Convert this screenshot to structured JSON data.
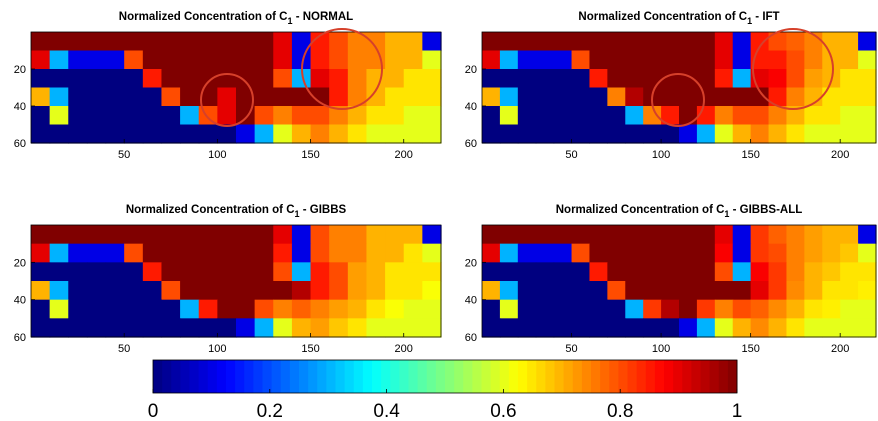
{
  "chart_data": [
    {
      "type": "heatmap",
      "title": {
        "text": "Normalized Concentration of C",
        "sub": "1",
        "suffix": " - NORMAL"
      },
      "xlim": [
        0,
        220
      ],
      "ylim": [
        0,
        60
      ],
      "y_reversed": true,
      "xticks": [
        50,
        100,
        150,
        200
      ],
      "yticks": [
        20,
        40,
        60
      ],
      "z": [
        [
          1,
          1,
          1,
          1,
          1,
          1,
          1,
          1,
          1,
          1,
          1,
          1,
          1,
          0.9,
          0.1,
          0.85,
          0.8,
          0.75,
          0.75,
          0.7,
          0.7,
          0.1
        ],
        [
          0.9,
          0.3,
          0.1,
          0.1,
          0.1,
          0.8,
          1,
          1,
          1,
          1,
          1,
          1,
          1,
          0.9,
          0.1,
          0.85,
          0.8,
          0.75,
          0.75,
          0.7,
          0.7,
          0.6
        ],
        [
          0,
          0,
          0,
          0,
          0,
          0,
          0.85,
          1,
          1,
          1,
          1,
          1,
          1,
          0.8,
          0.3,
          0.9,
          0.85,
          0.75,
          0.7,
          0.7,
          0.65,
          0.65
        ],
        [
          0.7,
          0.3,
          0,
          0,
          0,
          0,
          0,
          0.8,
          1,
          1,
          0.9,
          1,
          1,
          1,
          1,
          1,
          0.85,
          0.75,
          0.7,
          0.65,
          0.65,
          0.65
        ],
        [
          0,
          0.6,
          0,
          0,
          0,
          0,
          0,
          0,
          0.3,
          0.8,
          0.9,
          1,
          0.8,
          0.75,
          0.8,
          0.8,
          0.75,
          0.7,
          0.65,
          0.65,
          0.6,
          0.6
        ],
        [
          0,
          0,
          0,
          0,
          0,
          0,
          0,
          0,
          0,
          0,
          0,
          0.1,
          0.3,
          0.6,
          0.7,
          0.75,
          0.7,
          0.65,
          0.6,
          0.6,
          0.6,
          0.6
        ]
      ]
    },
    {
      "type": "heatmap",
      "title": {
        "text": "Normalized Concentration of C",
        "sub": "1",
        "suffix": " - IFT"
      },
      "xlim": [
        0,
        220
      ],
      "ylim": [
        0,
        60
      ],
      "y_reversed": true,
      "xticks": [
        50,
        100,
        150,
        200
      ],
      "yticks": [
        20,
        40,
        60
      ],
      "z": [
        [
          1,
          1,
          1,
          1,
          1,
          1,
          1,
          1,
          1,
          1,
          1,
          1,
          1,
          0.9,
          0.1,
          0.85,
          0.8,
          0.78,
          0.75,
          0.7,
          0.7,
          0.1
        ],
        [
          0.9,
          0.3,
          0.1,
          0.1,
          0.1,
          0.8,
          1,
          1,
          1,
          1,
          1,
          1,
          1,
          0.9,
          0.1,
          0.85,
          0.85,
          0.8,
          0.75,
          0.7,
          0.7,
          0.6
        ],
        [
          0,
          0,
          0,
          0,
          0,
          0,
          0.85,
          1,
          1,
          1,
          1,
          1,
          1,
          0.85,
          0.3,
          0.9,
          0.88,
          0.8,
          0.72,
          0.7,
          0.65,
          0.65
        ],
        [
          0.7,
          0.3,
          0,
          0,
          0,
          0,
          0,
          0.75,
          0.95,
          1,
          1,
          1,
          1,
          1,
          1,
          1,
          0.85,
          0.75,
          0.7,
          0.65,
          0.65,
          0.65
        ],
        [
          0,
          0.6,
          0,
          0,
          0,
          0,
          0,
          0,
          0.3,
          0.75,
          0.85,
          1,
          0.85,
          0.75,
          0.8,
          0.8,
          0.75,
          0.7,
          0.65,
          0.65,
          0.6,
          0.6
        ],
        [
          0,
          0,
          0,
          0,
          0,
          0,
          0,
          0,
          0,
          0,
          0,
          0.1,
          0.3,
          0.6,
          0.7,
          0.75,
          0.7,
          0.65,
          0.6,
          0.6,
          0.6,
          0.6
        ]
      ]
    },
    {
      "type": "heatmap",
      "title": {
        "text": "Normalized Concentration of C",
        "sub": "1",
        "suffix": " - GIBBS"
      },
      "xlim": [
        0,
        220
      ],
      "ylim": [
        0,
        60
      ],
      "y_reversed": true,
      "xticks": [
        50,
        100,
        150,
        200
      ],
      "yticks": [
        20,
        40,
        60
      ],
      "z": [
        [
          1,
          1,
          1,
          1,
          1,
          1,
          1,
          1,
          1,
          1,
          1,
          1,
          1,
          0.9,
          0.1,
          0.8,
          0.75,
          0.75,
          0.7,
          0.7,
          0.7,
          0.1
        ],
        [
          0.9,
          0.3,
          0.1,
          0.1,
          0.1,
          0.8,
          1,
          1,
          1,
          1,
          1,
          1,
          1,
          0.85,
          0.1,
          0.8,
          0.75,
          0.75,
          0.7,
          0.7,
          0.65,
          0.6
        ],
        [
          0,
          0,
          0,
          0,
          0,
          0,
          0.85,
          1,
          1,
          1,
          1,
          1,
          1,
          0.8,
          0.3,
          0.85,
          0.8,
          0.72,
          0.7,
          0.65,
          0.65,
          0.65
        ],
        [
          0.7,
          0.3,
          0,
          0,
          0,
          0,
          0,
          0.8,
          1,
          1,
          1,
          1,
          1,
          1,
          0.95,
          0.85,
          0.8,
          0.72,
          0.7,
          0.65,
          0.65,
          0.62
        ],
        [
          0,
          0.6,
          0,
          0,
          0,
          0,
          0,
          0,
          0.3,
          0.85,
          1,
          1,
          0.8,
          0.75,
          0.78,
          0.75,
          0.72,
          0.7,
          0.65,
          0.62,
          0.6,
          0.6
        ],
        [
          0,
          0,
          0,
          0,
          0,
          0,
          0,
          0,
          0,
          0,
          0,
          0.1,
          0.3,
          0.6,
          0.7,
          0.72,
          0.68,
          0.65,
          0.6,
          0.6,
          0.6,
          0.6
        ]
      ]
    },
    {
      "type": "heatmap",
      "title": {
        "text": "Normalized Concentration of C",
        "sub": "1",
        "suffix": " - GIBBS-ALL"
      },
      "xlim": [
        0,
        220
      ],
      "ylim": [
        0,
        60
      ],
      "y_reversed": true,
      "xticks": [
        50,
        100,
        150,
        200
      ],
      "yticks": [
        20,
        40,
        60
      ],
      "z": [
        [
          1,
          1,
          1,
          1,
          1,
          1,
          1,
          1,
          1,
          1,
          1,
          1,
          1,
          0.9,
          0.1,
          0.82,
          0.78,
          0.75,
          0.72,
          0.7,
          0.7,
          0.1
        ],
        [
          0.9,
          0.3,
          0.1,
          0.1,
          0.1,
          0.8,
          1,
          1,
          1,
          1,
          1,
          1,
          1,
          0.88,
          0.1,
          0.82,
          0.8,
          0.75,
          0.72,
          0.7,
          0.68,
          0.6
        ],
        [
          0,
          0,
          0,
          0,
          0,
          0,
          0.85,
          1,
          1,
          1,
          1,
          1,
          1,
          0.8,
          0.3,
          0.88,
          0.82,
          0.75,
          0.7,
          0.68,
          0.65,
          0.65
        ],
        [
          0.7,
          0.3,
          0,
          0,
          0,
          0,
          0,
          0.8,
          1,
          1,
          1,
          1,
          1,
          1,
          1,
          0.9,
          0.82,
          0.74,
          0.7,
          0.65,
          0.65,
          0.64
        ],
        [
          0,
          0.6,
          0,
          0,
          0,
          0,
          0,
          0,
          0.3,
          0.82,
          0.95,
          1,
          0.82,
          0.75,
          0.8,
          0.78,
          0.74,
          0.7,
          0.65,
          0.64,
          0.6,
          0.6
        ],
        [
          0,
          0,
          0,
          0,
          0,
          0,
          0,
          0,
          0,
          0,
          0,
          0.1,
          0.3,
          0.6,
          0.7,
          0.74,
          0.7,
          0.65,
          0.6,
          0.6,
          0.6,
          0.6
        ]
      ]
    }
  ],
  "colorbar": {
    "colormap": "jet",
    "lim": [
      0,
      1
    ],
    "ticks": [
      0,
      0.2,
      0.4,
      0.6,
      0.8,
      1
    ]
  }
}
